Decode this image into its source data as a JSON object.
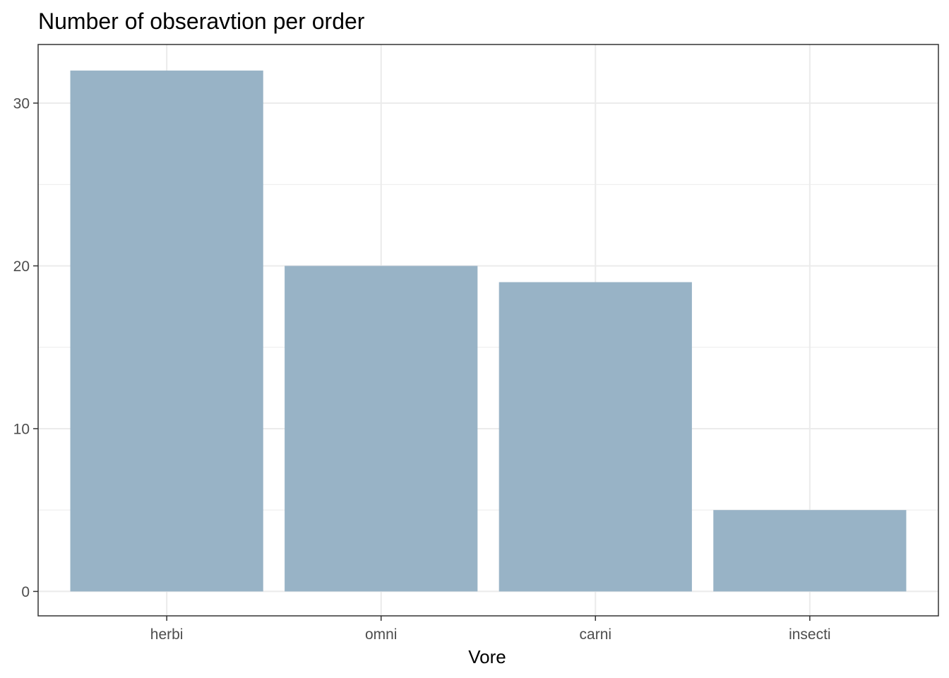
{
  "chart_data": {
    "type": "bar",
    "title": "Number of obseravtion per order",
    "xlabel": "Vore",
    "ylabel": "",
    "categories": [
      "herbi",
      "omni",
      "carni",
      "insecti"
    ],
    "values": [
      32,
      20,
      19,
      5
    ],
    "ylim": [
      -1.5,
      33.6
    ],
    "yticks": [
      0,
      10,
      20,
      30
    ],
    "yticks_labels": [
      "0",
      "10",
      "20",
      "30"
    ],
    "grid": true,
    "legend": "none",
    "colors": {
      "bar": "#98b3c6",
      "grid": "#ebebeb",
      "axis": "#333333",
      "tick_text": "#4d4d4d"
    }
  }
}
